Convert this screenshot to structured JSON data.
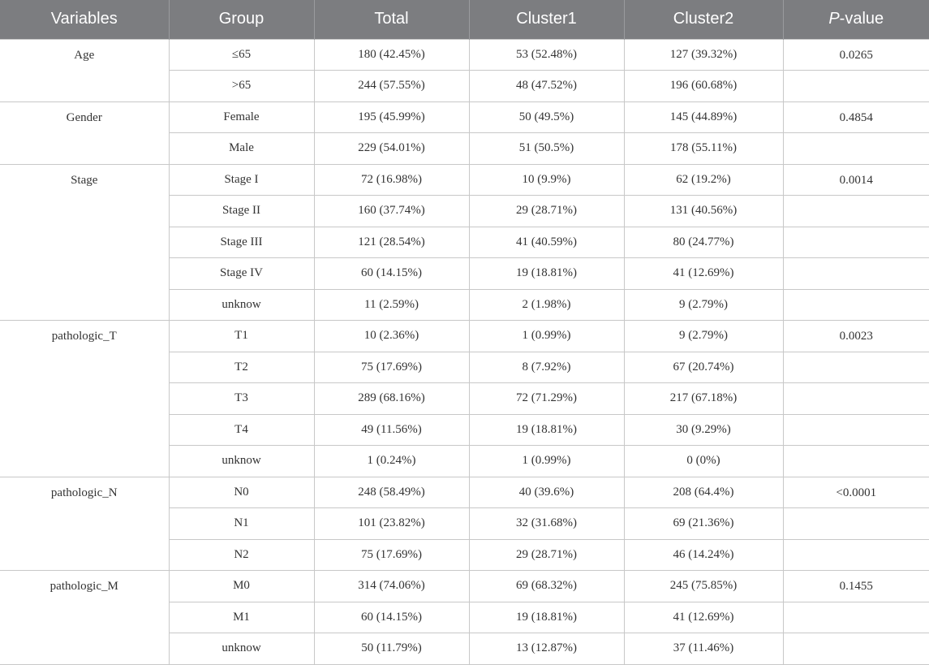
{
  "table": {
    "headers": {
      "variables": "Variables",
      "group": "Group",
      "total": "Total",
      "cluster1": "Cluster1",
      "cluster2": "Cluster2",
      "pvalue_italic": "P",
      "pvalue_rest": "-value"
    },
    "sections": [
      {
        "variable": "Age",
        "p_value": "0.0265",
        "rows": [
          {
            "group": "≤65",
            "total": "180 (42.45%)",
            "cluster1": "53 (52.48%)",
            "cluster2": "127 (39.32%)"
          },
          {
            "group": ">65",
            "total": "244 (57.55%)",
            "cluster1": "48 (47.52%)",
            "cluster2": "196 (60.68%)"
          }
        ]
      },
      {
        "variable": "Gender",
        "p_value": "0.4854",
        "rows": [
          {
            "group": "Female",
            "total": "195 (45.99%)",
            "cluster1": "50 (49.5%)",
            "cluster2": "145 (44.89%)"
          },
          {
            "group": "Male",
            "total": "229 (54.01%)",
            "cluster1": "51 (50.5%)",
            "cluster2": "178 (55.11%)"
          }
        ]
      },
      {
        "variable": "Stage",
        "p_value": "0.0014",
        "rows": [
          {
            "group": "Stage I",
            "total": "72 (16.98%)",
            "cluster1": "10 (9.9%)",
            "cluster2": "62 (19.2%)"
          },
          {
            "group": "Stage II",
            "total": "160 (37.74%)",
            "cluster1": "29 (28.71%)",
            "cluster2": "131 (40.56%)"
          },
          {
            "group": "Stage III",
            "total": "121 (28.54%)",
            "cluster1": "41 (40.59%)",
            "cluster2": "80 (24.77%)"
          },
          {
            "group": "Stage IV",
            "total": "60 (14.15%)",
            "cluster1": "19 (18.81%)",
            "cluster2": "41 (12.69%)"
          },
          {
            "group": "unknow",
            "total": "11 (2.59%)",
            "cluster1": "2 (1.98%)",
            "cluster2": "9 (2.79%)"
          }
        ]
      },
      {
        "variable": "pathologic_T",
        "p_value": "0.0023",
        "rows": [
          {
            "group": "T1",
            "total": "10 (2.36%)",
            "cluster1": "1 (0.99%)",
            "cluster2": "9 (2.79%)"
          },
          {
            "group": "T2",
            "total": "75 (17.69%)",
            "cluster1": "8 (7.92%)",
            "cluster2": "67 (20.74%)"
          },
          {
            "group": "T3",
            "total": "289 (68.16%)",
            "cluster1": "72 (71.29%)",
            "cluster2": "217 (67.18%)"
          },
          {
            "group": "T4",
            "total": "49 (11.56%)",
            "cluster1": "19 (18.81%)",
            "cluster2": "30 (9.29%)"
          },
          {
            "group": "unknow",
            "total": "1 (0.24%)",
            "cluster1": "1 (0.99%)",
            "cluster2": "0 (0%)"
          }
        ]
      },
      {
        "variable": "pathologic_N",
        "p_value": "<0.0001",
        "rows": [
          {
            "group": "N0",
            "total": "248 (58.49%)",
            "cluster1": "40 (39.6%)",
            "cluster2": "208 (64.4%)"
          },
          {
            "group": "N1",
            "total": "101 (23.82%)",
            "cluster1": "32 (31.68%)",
            "cluster2": "69 (21.36%)"
          },
          {
            "group": "N2",
            "total": "75 (17.69%)",
            "cluster1": "29 (28.71%)",
            "cluster2": "46 (14.24%)"
          }
        ]
      },
      {
        "variable": "pathologic_M",
        "p_value": "0.1455",
        "rows": [
          {
            "group": "M0",
            "total": "314 (74.06%)",
            "cluster1": "69 (68.32%)",
            "cluster2": "245 (75.85%)"
          },
          {
            "group": "M1",
            "total": "60 (14.15%)",
            "cluster1": "19 (18.81%)",
            "cluster2": "41 (12.69%)"
          },
          {
            "group": "unknow",
            "total": "50 (11.79%)",
            "cluster1": "13 (12.87%)",
            "cluster2": "37 (11.46%)"
          }
        ]
      }
    ]
  }
}
